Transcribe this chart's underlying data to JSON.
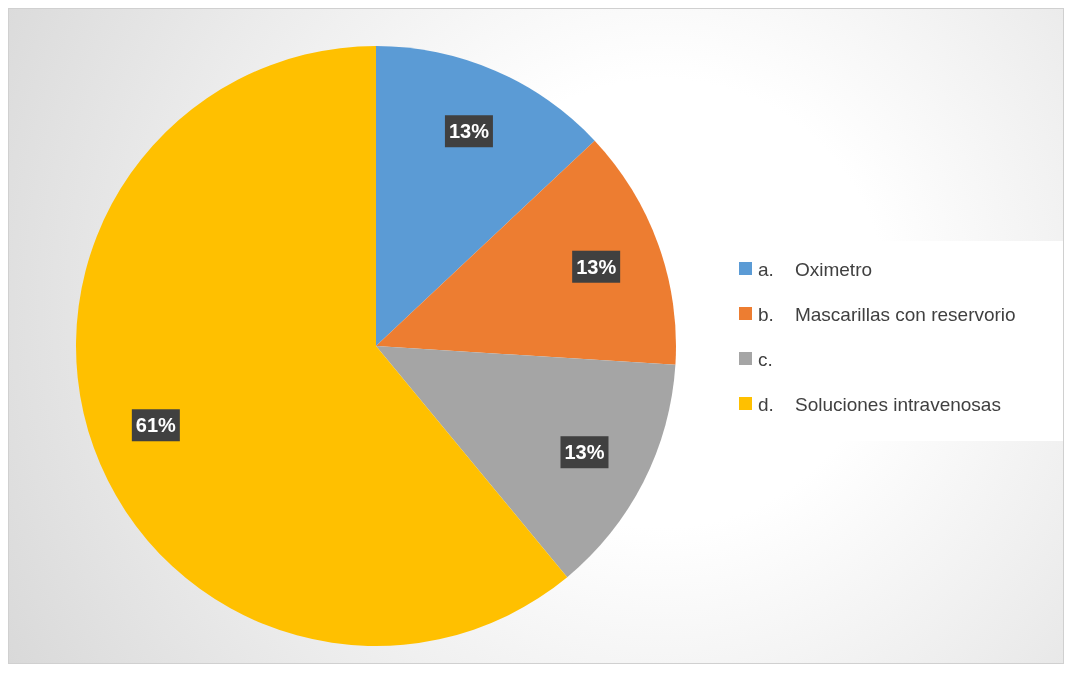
{
  "chart_data": {
    "type": "pie",
    "categories": [
      "a.    Oximetro",
      "b.    Mascarillas con reservorio",
      "c.",
      "d.    Soluciones intravenosas"
    ],
    "values": [
      13,
      13,
      13,
      61
    ],
    "colors": [
      "#5b9bd5",
      "#ed7d31",
      "#a5a5a5",
      "#ffc000"
    ],
    "value_labels": [
      "13%",
      "13%",
      "13%",
      "61%"
    ],
    "legend": "right"
  }
}
